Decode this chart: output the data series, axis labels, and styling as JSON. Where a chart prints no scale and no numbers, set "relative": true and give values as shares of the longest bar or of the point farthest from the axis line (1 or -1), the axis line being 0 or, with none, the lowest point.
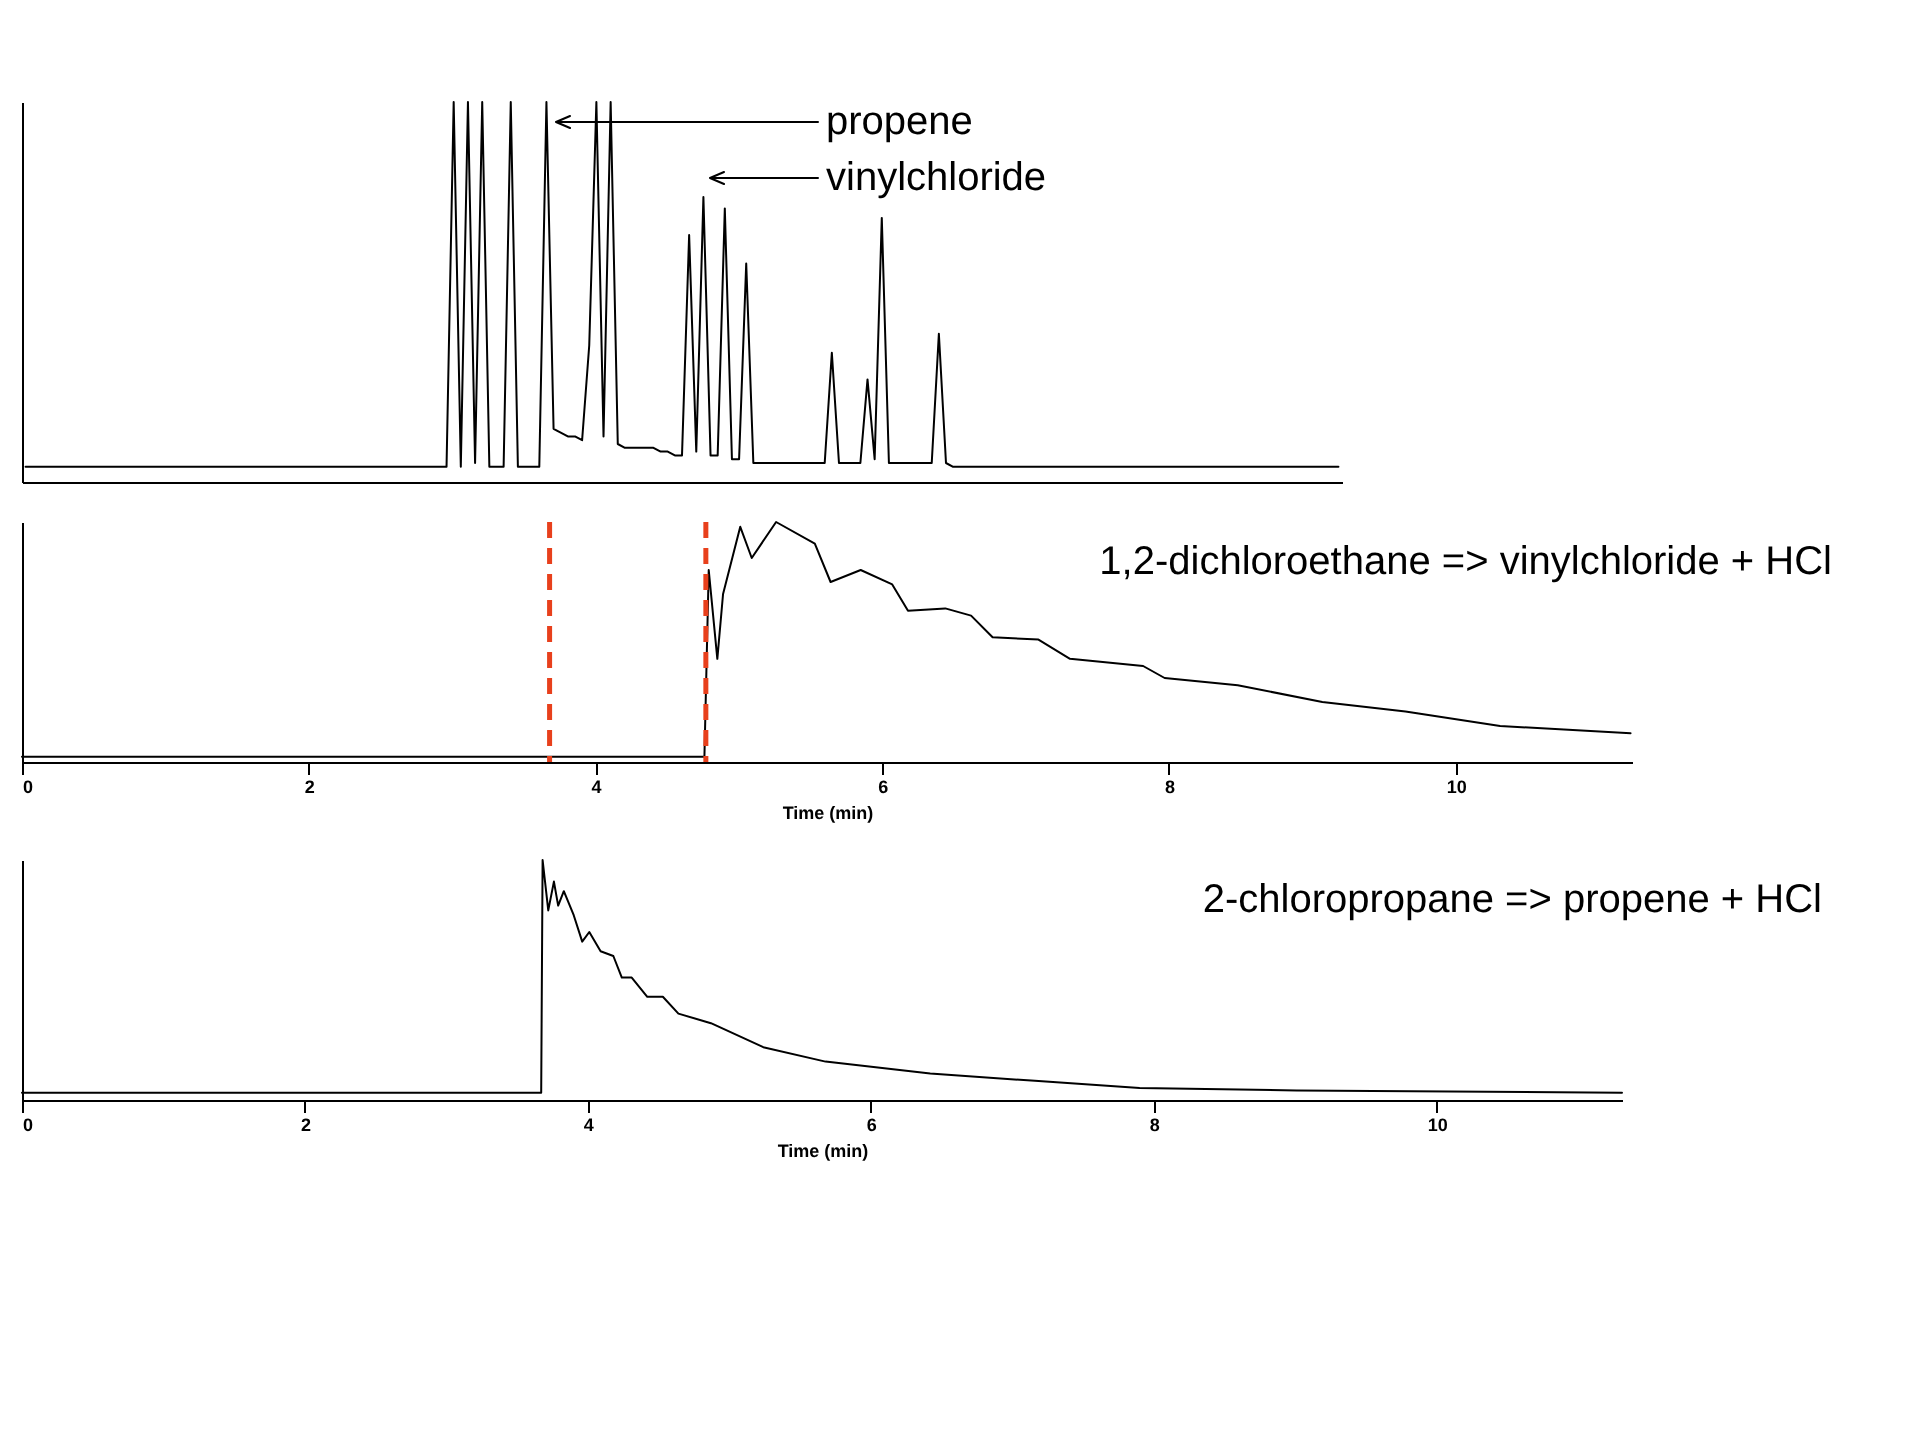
{
  "chart_data": [
    {
      "type": "line",
      "relative": true,
      "categories": [
        null,
        null,
        null,
        null,
        null,
        null,
        null,
        null,
        null,
        null,
        null,
        null,
        null,
        null,
        null,
        null,
        null,
        null,
        null,
        null,
        null,
        null,
        null,
        null,
        null,
        null,
        null,
        null,
        null,
        null,
        null,
        null,
        null,
        null,
        null,
        null,
        null,
        null,
        null,
        null,
        null,
        null,
        null,
        null,
        null,
        null,
        null,
        null,
        null,
        null,
        null,
        null,
        null,
        null,
        null,
        null,
        null,
        null,
        null,
        null,
        null,
        null,
        null,
        null,
        null,
        null,
        null,
        null,
        null,
        null,
        null,
        null,
        null,
        null,
        null,
        null,
        null,
        null,
        null,
        null,
        null,
        null,
        null,
        null,
        null,
        null,
        null,
        null,
        null,
        null,
        null,
        null,
        null,
        null,
        null,
        null,
        null,
        null,
        null,
        null,
        null,
        null,
        null,
        null,
        null,
        null,
        null,
        null,
        null,
        null,
        null,
        null,
        null,
        null,
        null,
        null,
        null,
        null,
        null,
        null,
        null,
        null,
        null,
        null,
        null,
        null,
        null,
        null,
        null,
        null,
        null,
        null,
        null,
        null,
        null,
        null,
        null,
        null,
        null,
        null,
        null,
        null,
        null,
        null,
        null,
        null,
        null,
        null,
        null,
        null,
        null,
        null,
        null,
        null,
        null,
        null,
        null,
        null,
        null,
        null,
        null,
        null,
        null,
        null,
        null,
        null,
        null,
        null,
        null,
        null,
        null,
        null,
        null,
        null,
        null,
        null,
        null,
        null,
        null,
        null,
        null,
        null,
        null,
        null,
        null
      ],
      "tick_labels": false,
      "grid": false,
      "legend": false,
      "marker": "none",
      "line_style": "solid",
      "series": [
        {
          "color": "#000000",
          "values": [
            0.04,
            0.04,
            0.04,
            0.04,
            0.04,
            0.04,
            0.04,
            0.04,
            0.04,
            0.04,
            0.04,
            0.04,
            0.04,
            0.04,
            0.04,
            0.04,
            0.04,
            0.04,
            0.04,
            0.04,
            0.04,
            0.04,
            0.04,
            0.04,
            0.04,
            0.04,
            0.04,
            0.04,
            0.04,
            0.04,
            0.04,
            0.04,
            0.04,
            0.04,
            0.04,
            0.04,
            0.04,
            0.04,
            0.04,
            0.04,
            0.04,
            0.04,
            0.04,
            0.04,
            0.04,
            0.04,
            0.04,
            0.04,
            0.04,
            0.04,
            0.04,
            0.04,
            0.04,
            0.04,
            0.04,
            0.04,
            0.04,
            0.04,
            0.04,
            0.04,
            1,
            0.04,
            1,
            0.05,
            1,
            0.04,
            0.04,
            0.04,
            1,
            0.04,
            0.04,
            0.04,
            0.04,
            1,
            0.14,
            0.13,
            0.12,
            0.12,
            0.11,
            0.36,
            1,
            0.12,
            1,
            0.1,
            0.09,
            0.09,
            0.09,
            0.09,
            0.09,
            0.08,
            0.08,
            0.07,
            0.07,
            0.65,
            0.08,
            0.75,
            0.07,
            0.07,
            0.72,
            0.06,
            0.06,
            0.575,
            0.05,
            0.05,
            0.05,
            0.05,
            0.05,
            0.05,
            0.05,
            0.05,
            0.05,
            0.05,
            0.05,
            0.34,
            0.05,
            0.05,
            0.05,
            0.05,
            0.27,
            0.06,
            0.695,
            0.05,
            0.05,
            0.05,
            0.05,
            0.05,
            0.05,
            0.05,
            0.39,
            0.05,
            0.04,
            0.04,
            0.04,
            0.04,
            0.04,
            0.04,
            0.04,
            0.04,
            0.04,
            0.04,
            0.04,
            0.04,
            0.04,
            0.04,
            0.04,
            0.04,
            0.04,
            0.04,
            0.04,
            0.04,
            0.04,
            0.04,
            0.04,
            0.04,
            0.04,
            0.04,
            0.04,
            0.04,
            0.04,
            0.04,
            0.04,
            0.04,
            0.04,
            0.04,
            0.04,
            0.04,
            0.04,
            0.04,
            0.04,
            0.04,
            0.04,
            0.04,
            0.04,
            0.04,
            0.04,
            0.04,
            0.04,
            0.04,
            0.04,
            0.04,
            0.04,
            0.04,
            0.04,
            0.04,
            0.04
          ]
        }
      ],
      "annotations": [
        "propene",
        "vinylchloride"
      ]
    },
    {
      "type": "line",
      "relative": true,
      "xlim": [
        0,
        11.23
      ],
      "xticks": [
        0,
        2,
        4,
        6,
        8,
        10
      ],
      "tick_labels": "x",
      "xlabel": "Time (min)",
      "grid": false,
      "legend": false,
      "marker": "none",
      "line_style": "solid",
      "series": [
        {
          "color": "#000000",
          "x": [
            0,
            4.76,
            4.79,
            4.85,
            4.89,
            5.01,
            5.09,
            5.26,
            5.53,
            5.64,
            5.85,
            6.07,
            6.18,
            6.44,
            6.62,
            6.77,
            7.09,
            7.31,
            7.82,
            7.97,
            8.48,
            9.07,
            9.65,
            10.31,
            11.22
          ],
          "values": [
            0.022,
            0.022,
            0.8,
            0.43,
            0.7,
            0.98,
            0.85,
            1,
            0.91,
            0.75,
            0.8,
            0.74,
            0.63,
            0.64,
            0.61,
            0.52,
            0.51,
            0.43,
            0.4,
            0.35,
            0.32,
            0.25,
            0.21,
            0.15,
            0.12
          ]
        }
      ],
      "ref_lines": [
        {
          "axis": "x",
          "value": 3.68,
          "color": "#e8401c",
          "line_style": "dashed"
        },
        {
          "axis": "x",
          "value": 4.77,
          "color": "#e8401c",
          "line_style": "dashed"
        }
      ],
      "annotations": [
        "1,2-dichloroethane => vinylchloride + HCl"
      ]
    },
    {
      "type": "line",
      "relative": true,
      "xlim": [
        0,
        11.31
      ],
      "xticks": [
        0,
        2,
        4,
        6,
        8,
        10
      ],
      "tick_labels": "x",
      "xlabel": "Time (min)",
      "grid": false,
      "legend": false,
      "marker": "none",
      "line_style": "solid",
      "series": [
        {
          "color": "#000000",
          "x": [
            0,
            3.67,
            3.68,
            3.72,
            3.76,
            3.79,
            3.83,
            3.9,
            3.96,
            4.01,
            4.09,
            4.18,
            4.24,
            4.31,
            4.42,
            4.53,
            4.64,
            4.87,
            5.24,
            5.68,
            6.42,
            7.16,
            7.9,
            9.01,
            11.31
          ],
          "values": [
            0.03,
            0.03,
            1,
            0.79,
            0.91,
            0.81,
            0.87,
            0.77,
            0.66,
            0.7,
            0.62,
            0.6,
            0.51,
            0.51,
            0.43,
            0.43,
            0.36,
            0.32,
            0.22,
            0.16,
            0.11,
            0.08,
            0.05,
            0.04,
            0.03
          ]
        }
      ],
      "annotations": [
        "2-chloropropane => propene + HCl"
      ]
    }
  ]
}
